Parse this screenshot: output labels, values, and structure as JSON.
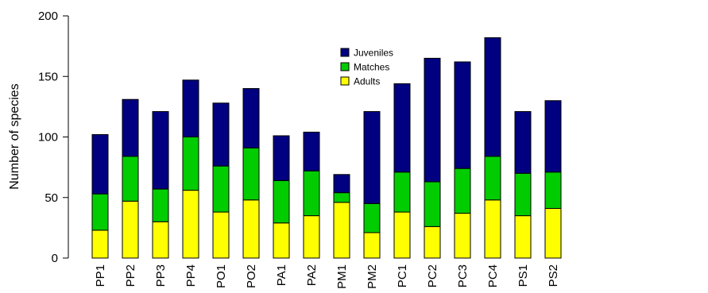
{
  "chart_data": {
    "type": "bar",
    "stacked": true,
    "title": "",
    "xlabel": "",
    "ylabel": "Number of species",
    "ylim": [
      0,
      200
    ],
    "yticks": [
      0,
      50,
      100,
      150,
      200
    ],
    "grid": false,
    "legend_position": "top-center",
    "groups": [
      [
        "PP1",
        "PP2",
        "PP3",
        "PP4"
      ],
      [
        "PO1",
        "PO2"
      ],
      [
        "PA1",
        "PA2"
      ],
      [
        "PM1",
        "PM2"
      ],
      [
        "PC1",
        "PC2",
        "PC3",
        "PC4"
      ],
      [
        "PS1",
        "PS2"
      ]
    ],
    "categories": [
      "PP1",
      "PP2",
      "PP3",
      "PP4",
      "PO1",
      "PO2",
      "PA1",
      "PA2",
      "PM1",
      "PM2",
      "PC1",
      "PC2",
      "PC3",
      "PC4",
      "PS1",
      "PS2"
    ],
    "series": [
      {
        "name": "Adults",
        "color": "#ffff00",
        "values": [
          23,
          47,
          30,
          56,
          38,
          48,
          29,
          35,
          46,
          21,
          38,
          26,
          37,
          48,
          35,
          41
        ]
      },
      {
        "name": "Matches",
        "color": "#00cc00",
        "values": [
          30,
          37,
          27,
          44,
          38,
          43,
          35,
          37,
          8,
          24,
          33,
          37,
          37,
          36,
          35,
          30
        ]
      },
      {
        "name": "Juveniles",
        "color": "#000080",
        "values": [
          49,
          47,
          64,
          47,
          52,
          49,
          37,
          32,
          15,
          76,
          73,
          102,
          88,
          98,
          51,
          59
        ]
      }
    ],
    "legend_order": [
      "Juveniles",
      "Matches",
      "Adults"
    ]
  }
}
